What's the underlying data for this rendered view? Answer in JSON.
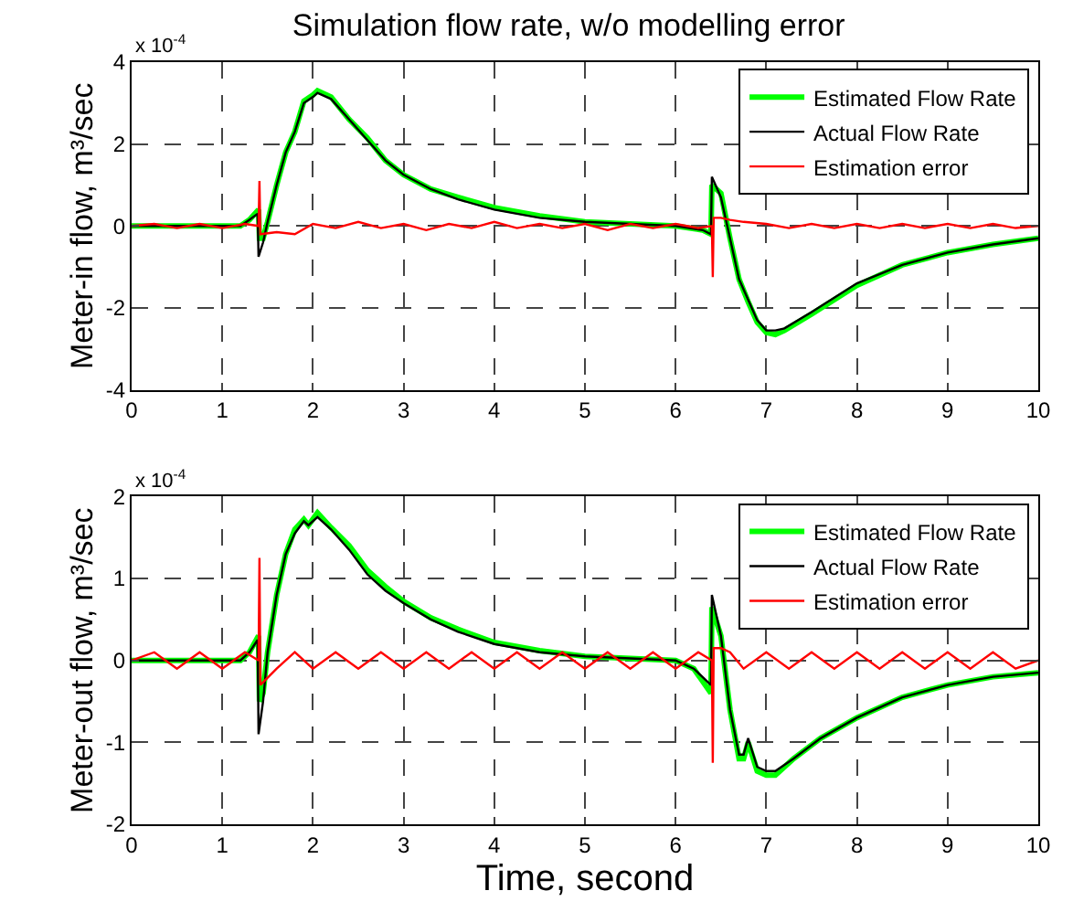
{
  "chart_data": [
    {
      "type": "line",
      "title": "Simulation flow rate, w/o modelling error",
      "ylabel": "Meter-in flow, m³/sec",
      "annotations": [
        "x 10$^{-4}$"
      ],
      "xlim": [
        0,
        10
      ],
      "xticks": [
        0,
        1,
        2,
        3,
        4,
        5,
        6,
        7,
        8,
        9,
        10
      ],
      "ylim": [
        -4,
        4
      ],
      "yticks": [
        -4,
        -2,
        0,
        2,
        4
      ],
      "grid": true,
      "legend": "top right",
      "line_style": "solid",
      "series": [
        {
          "name": "Estimated Flow Rate",
          "color": "#00ff00",
          "x": [
            0,
            1.2,
            1.3,
            1.4,
            1.41,
            1.45,
            1.5,
            1.6,
            1.7,
            1.8,
            1.9,
            2.0,
            2.05,
            2.2,
            2.4,
            2.6,
            2.8,
            3.0,
            3.3,
            3.6,
            4.0,
            4.5,
            5.0,
            5.5,
            6.0,
            6.3,
            6.39,
            6.4,
            6.5,
            6.6,
            6.7,
            6.8,
            6.9,
            7.0,
            7.1,
            7.2,
            7.5,
            8.0,
            8.5,
            9.0,
            9.5,
            10
          ],
          "values": [
            0,
            0,
            0.15,
            0.4,
            -0.3,
            -0.3,
            0.1,
            1.0,
            1.8,
            2.3,
            3.05,
            3.2,
            3.3,
            3.15,
            2.6,
            2.15,
            1.6,
            1.25,
            0.9,
            0.7,
            0.45,
            0.25,
            0.1,
            0.05,
            0,
            -0.1,
            -0.2,
            1.0,
            0.8,
            -0.3,
            -1.3,
            -1.85,
            -2.35,
            -2.6,
            -2.65,
            -2.55,
            -2.15,
            -1.45,
            -0.95,
            -0.65,
            -0.45,
            -0.3
          ]
        },
        {
          "name": "Actual Flow Rate",
          "color": "#000000",
          "x": [
            0,
            1.2,
            1.3,
            1.39,
            1.4,
            1.45,
            1.5,
            1.6,
            1.7,
            1.8,
            1.9,
            2.0,
            2.05,
            2.2,
            2.4,
            2.6,
            2.8,
            3.0,
            3.3,
            3.6,
            4.0,
            4.5,
            5.0,
            5.5,
            6.0,
            6.3,
            6.39,
            6.4,
            6.5,
            6.6,
            6.7,
            6.8,
            6.9,
            7.0,
            7.1,
            7.2,
            7.5,
            8.0,
            8.5,
            9.0,
            9.5,
            10
          ],
          "values": [
            0,
            0,
            0.15,
            0.3,
            -0.75,
            -0.4,
            0.1,
            1.0,
            1.8,
            2.3,
            3.0,
            3.15,
            3.25,
            3.1,
            2.6,
            2.1,
            1.6,
            1.25,
            0.9,
            0.65,
            0.4,
            0.2,
            0.1,
            0.05,
            0,
            -0.1,
            -0.2,
            1.2,
            0.7,
            -0.3,
            -1.3,
            -1.8,
            -2.3,
            -2.55,
            -2.55,
            -2.5,
            -2.1,
            -1.4,
            -0.95,
            -0.65,
            -0.45,
            -0.3
          ]
        },
        {
          "name": "Estimation error",
          "color": "#ff0000",
          "x": [
            0,
            0.25,
            0.5,
            0.75,
            1.0,
            1.25,
            1.4,
            1.41,
            1.42,
            1.6,
            1.8,
            2.0,
            2.25,
            2.5,
            2.75,
            3.0,
            3.25,
            3.5,
            3.75,
            4.0,
            4.25,
            4.5,
            4.75,
            5.0,
            5.25,
            5.5,
            5.75,
            6.0,
            6.25,
            6.4,
            6.41,
            6.42,
            6.5,
            6.6,
            6.75,
            7.0,
            7.25,
            7.5,
            7.75,
            8.0,
            8.25,
            8.5,
            8.75,
            9.0,
            9.25,
            9.5,
            9.75,
            10
          ],
          "values": [
            0,
            0.05,
            -0.05,
            0.05,
            -0.05,
            0.05,
            0,
            1.1,
            -0.2,
            -0.15,
            -0.2,
            0.05,
            -0.05,
            0.1,
            -0.05,
            0.05,
            -0.1,
            0.05,
            -0.05,
            0.1,
            -0.05,
            0.05,
            -0.05,
            0.05,
            -0.1,
            0.05,
            -0.05,
            0.05,
            -0.05,
            0,
            -1.25,
            0.2,
            0.2,
            0.15,
            0.1,
            0.05,
            -0.05,
            0.05,
            -0.05,
            0.05,
            -0.05,
            0.05,
            -0.05,
            0.05,
            -0.05,
            0.05,
            -0.05,
            0
          ]
        }
      ]
    },
    {
      "type": "line",
      "xlabel": "Time, second",
      "ylabel": "Meter-out flow, m³/sec",
      "annotations": [
        "x 10$^{-4}$"
      ],
      "xlim": [
        0,
        10
      ],
      "xticks": [
        0,
        1,
        2,
        3,
        4,
        5,
        6,
        7,
        8,
        9,
        10
      ],
      "ylim": [
        -2,
        2
      ],
      "yticks": [
        -2,
        -1,
        0,
        1,
        2
      ],
      "grid": true,
      "legend": "top right",
      "line_style": "solid",
      "series": [
        {
          "name": "Estimated Flow Rate",
          "color": "#00ff00",
          "x": [
            0,
            1.2,
            1.3,
            1.4,
            1.41,
            1.45,
            1.5,
            1.6,
            1.7,
            1.8,
            1.9,
            1.95,
            2.05,
            2.2,
            2.4,
            2.6,
            2.8,
            3.0,
            3.3,
            3.6,
            4.0,
            4.5,
            5.0,
            6.0,
            6.2,
            6.39,
            6.4,
            6.5,
            6.6,
            6.7,
            6.75,
            6.8,
            6.9,
            7.0,
            7.1,
            7.3,
            7.6,
            8.0,
            8.5,
            9.0,
            9.5,
            10
          ],
          "values": [
            0,
            0,
            0.1,
            0.3,
            -0.5,
            -0.4,
            0.1,
            0.8,
            1.3,
            1.6,
            1.72,
            1.65,
            1.8,
            1.62,
            1.4,
            1.1,
            0.9,
            0.72,
            0.52,
            0.38,
            0.22,
            0.12,
            0.05,
            0,
            -0.1,
            -0.4,
            0.65,
            0.3,
            -0.6,
            -1.2,
            -1.2,
            -1.0,
            -1.35,
            -1.4,
            -1.4,
            -1.2,
            -0.95,
            -0.7,
            -0.45,
            -0.3,
            -0.2,
            -0.15
          ]
        },
        {
          "name": "Actual Flow Rate",
          "color": "#000000",
          "x": [
            0,
            1.2,
            1.3,
            1.39,
            1.4,
            1.45,
            1.5,
            1.6,
            1.7,
            1.8,
            1.9,
            1.95,
            2.05,
            2.2,
            2.4,
            2.6,
            2.8,
            3.0,
            3.3,
            3.6,
            4.0,
            4.5,
            5.0,
            6.0,
            6.2,
            6.39,
            6.4,
            6.5,
            6.6,
            6.7,
            6.75,
            6.8,
            6.9,
            7.0,
            7.1,
            7.3,
            7.6,
            8.0,
            8.5,
            9.0,
            9.5,
            10
          ],
          "values": [
            0,
            0,
            0.1,
            0.25,
            -0.9,
            -0.5,
            0.1,
            0.8,
            1.3,
            1.55,
            1.7,
            1.65,
            1.75,
            1.6,
            1.35,
            1.05,
            0.85,
            0.7,
            0.5,
            0.35,
            0.2,
            0.1,
            0.05,
            0,
            -0.1,
            -0.3,
            0.8,
            0.3,
            -0.6,
            -1.15,
            -1.15,
            -0.95,
            -1.3,
            -1.35,
            -1.35,
            -1.2,
            -0.95,
            -0.7,
            -0.45,
            -0.3,
            -0.2,
            -0.15
          ]
        },
        {
          "name": "Estimation error",
          "color": "#ff0000",
          "x": [
            0,
            0.25,
            0.5,
            0.75,
            1.0,
            1.25,
            1.4,
            1.41,
            1.42,
            1.6,
            1.8,
            2.0,
            2.25,
            2.5,
            2.75,
            3.0,
            3.25,
            3.5,
            3.75,
            4.0,
            4.25,
            4.5,
            4.75,
            5.0,
            5.25,
            5.5,
            5.75,
            6.0,
            6.25,
            6.4,
            6.41,
            6.42,
            6.5,
            6.6,
            6.75,
            7.0,
            7.25,
            7.5,
            7.75,
            8.0,
            8.25,
            8.5,
            8.75,
            9.0,
            9.25,
            9.5,
            9.75,
            10
          ],
          "values": [
            0,
            0.1,
            -0.1,
            0.1,
            -0.1,
            0.1,
            0,
            1.25,
            -0.3,
            -0.1,
            0.1,
            -0.1,
            0.1,
            -0.1,
            0.1,
            -0.1,
            0.1,
            -0.1,
            0.1,
            -0.1,
            0.1,
            -0.1,
            0.1,
            -0.1,
            0.1,
            -0.1,
            0.1,
            -0.1,
            0.1,
            0,
            -1.25,
            0.15,
            0.15,
            0.1,
            -0.1,
            0.1,
            -0.1,
            0.1,
            -0.1,
            0.1,
            -0.1,
            0.1,
            -0.1,
            0.1,
            -0.1,
            0.1,
            -0.1,
            0
          ]
        }
      ]
    }
  ]
}
